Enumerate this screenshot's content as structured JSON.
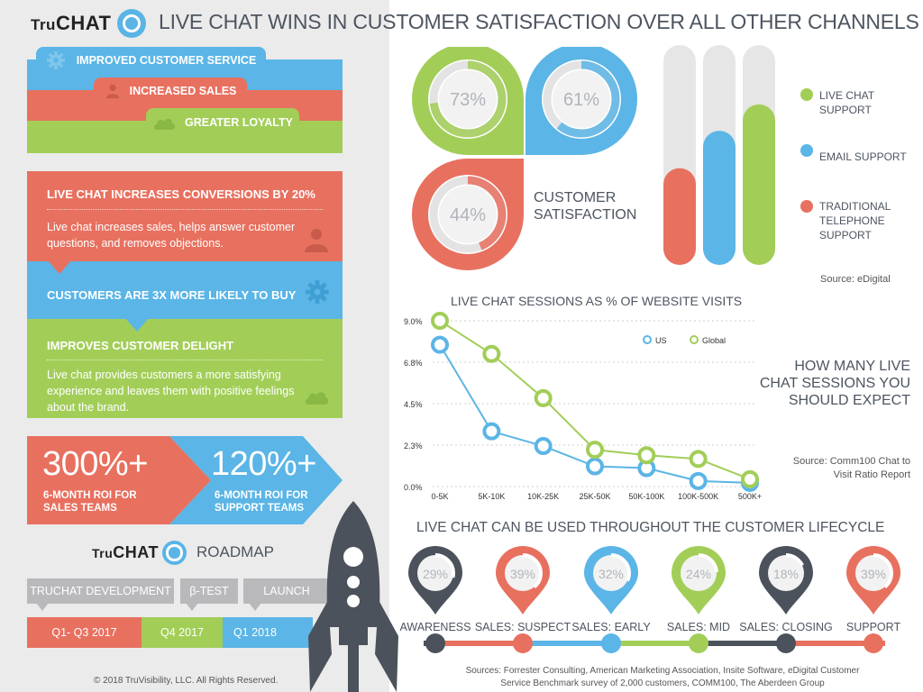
{
  "brand": {
    "tru": "Tru",
    "chat": "CHAT"
  },
  "header": {
    "title": "LIVE CHAT WINS IN CUSTOMER SATISFACTION OVER ALL OTHER CHANNELS"
  },
  "banners": [
    {
      "label": "IMPROVED CUSTOMER SERVICE",
      "icon": "gear-icon",
      "color": "#5bb5e6"
    },
    {
      "label": "INCREASED SALES",
      "icon": "person-icon",
      "color": "#e8705f"
    },
    {
      "label": "GREATER LOYALTY",
      "icon": "cloud-icon",
      "color": "#a2ce58"
    }
  ],
  "panels": {
    "conversions": {
      "heading": "LIVE CHAT INCREASES CONVERSIONS BY 20%",
      "body": "Live chat increases sales, helps answer customer questions, and removes objections."
    },
    "buy": {
      "heading": "CUSTOMERS ARE 3X MORE LIKELY TO BUY"
    },
    "delight": {
      "heading": "IMPROVES CUSTOMER DELIGHT",
      "body": "Live chat provides customers a more satisfying experience and leaves them with positive feelings about the brand."
    }
  },
  "roi": [
    {
      "value": "300%+",
      "label": "6-MONTH ROI FOR SALES TEAMS"
    },
    {
      "value": "120%+",
      "label": "6-MONTH ROI FOR SUPPORT TEAMS"
    }
  ],
  "roadmap": {
    "title": "ROADMAP",
    "phases": [
      "TRUCHAT DEVELOPMENT",
      "β-TEST",
      "LAUNCH"
    ],
    "periods": [
      "Q1- Q3 2017",
      "Q4 2017",
      "Q1 2018"
    ]
  },
  "copyright": "© 2018 TruVisibility, LLC. All Rights Reserved.",
  "satisfaction": {
    "label_line1": "CUSTOMER",
    "label_line2": "SATISFACTION",
    "source": "Source: eDigital",
    "legend": [
      {
        "line1": "LIVE CHAT",
        "line2": "SUPPORT",
        "line3": "",
        "color": "#a2ce58"
      },
      {
        "line1": "EMAIL SUPPORT",
        "line2": "",
        "line3": "",
        "color": "#5bb5e6"
      },
      {
        "line1": "TRADITIONAL",
        "line2": "TELEPHONE",
        "line3": "SUPPORT",
        "color": "#e8705f"
      }
    ]
  },
  "sessions": {
    "heading_line1": "HOW MANY LIVE",
    "heading_line2": "CHAT SESSIONS YOU",
    "heading_line3": "SHOULD EXPECT",
    "source_line1": "Source: Comm100 Chat to",
    "source_line2": "Visit Ratio Report"
  },
  "lifecycle": {
    "title": "LIVE CHAT CAN BE USED THROUGHOUT THE CUSTOMER LIFECYCLE",
    "sources_line1": "Sources: Forrester Consulting, American Marketing Association, Insite Software, eDigital Customer",
    "sources_line2": "Service Benchmark survey of 2,000 customers, COMM100, The Aberdeen Group"
  },
  "chart_data": [
    {
      "type": "pie",
      "title": "",
      "categories": [
        "LIVE CHAT SUPPORT",
        "EMAIL SUPPORT",
        "TRADITIONAL TELEPHONE SUPPORT"
      ],
      "values": [
        73,
        61,
        44
      ],
      "value_labels": [
        "73%",
        "61%",
        "44%"
      ],
      "colors": [
        "#a2ce58",
        "#5bb5e6",
        "#e8705f"
      ]
    },
    {
      "type": "bar",
      "title": "",
      "categories": [
        "TRADITIONAL TELEPHONE SUPPORT",
        "EMAIL SUPPORT",
        "LIVE CHAT SUPPORT"
      ],
      "values": [
        44,
        61,
        73
      ],
      "ylim": [
        0,
        100
      ],
      "colors": [
        "#e8705f",
        "#5bb5e6",
        "#a2ce58"
      ]
    },
    {
      "type": "line",
      "title": "LIVE CHAT SESSIONS AS % OF WEBSITE VISITS",
      "categories": [
        "0-5K",
        "5K-10K",
        "10K-25K",
        "25K-50K",
        "50K-100K",
        "100K-500K",
        "500K+"
      ],
      "y_ticks": [
        "0.0%",
        "2.3%",
        "4.5%",
        "6.8%",
        "9.0%"
      ],
      "ylim": [
        0,
        9.0
      ],
      "grid": true,
      "legend_position": "top-right",
      "series": [
        {
          "name": "US",
          "color": "#5bb5e6",
          "values": [
            7.7,
            3.0,
            2.2,
            1.1,
            1.0,
            0.3,
            0.2
          ]
        },
        {
          "name": "Global",
          "color": "#a2ce58",
          "values": [
            9.0,
            7.2,
            4.8,
            2.0,
            1.7,
            1.5,
            0.4
          ]
        }
      ]
    },
    {
      "type": "bar",
      "title": "LIVE CHAT CAN BE USED THROUGHOUT THE CUSTOMER LIFECYCLE",
      "categories": [
        "AWARENESS",
        "SALES: SUSPECT",
        "SALES: EARLY",
        "SALES: MID",
        "SALES: CLOSING",
        "SUPPORT"
      ],
      "values": [
        29,
        39,
        32,
        24,
        18,
        39
      ],
      "value_labels": [
        "29%",
        "39%",
        "32%",
        "24%",
        "18%",
        "39%"
      ],
      "colors": [
        "#4c525b",
        "#e8705f",
        "#5bb5e6",
        "#a2ce58",
        "#4c525b",
        "#e8705f"
      ]
    }
  ]
}
